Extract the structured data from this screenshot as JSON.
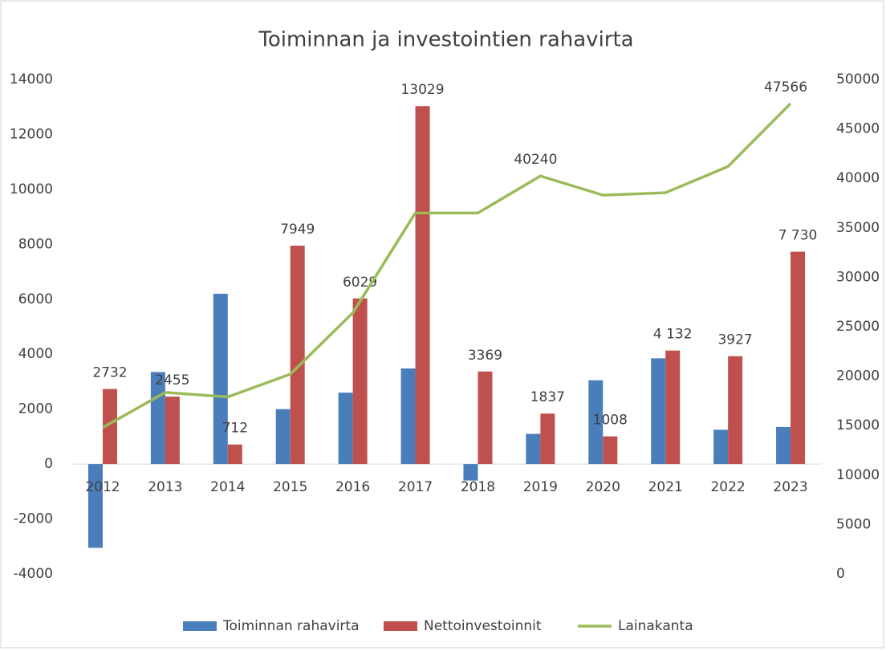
{
  "chart_data": {
    "type": "bar-line",
    "title": "Toiminnan ja investointien rahavirta",
    "categories": [
      "2012",
      "2013",
      "2014",
      "2015",
      "2016",
      "2017",
      "2018",
      "2019",
      "2020",
      "2021",
      "2022",
      "2023"
    ],
    "series": [
      {
        "name": "Toiminnan rahavirta",
        "type": "bar",
        "color": "#4a7ebb",
        "axis": "y",
        "values": [
          -3050,
          3350,
          6200,
          2000,
          2600,
          3480,
          -600,
          1100,
          3050,
          3850,
          1250,
          1350
        ]
      },
      {
        "name": "Nettoinvestoinnit",
        "type": "bar",
        "color": "#c0504d",
        "axis": "y",
        "values": [
          2732,
          2455,
          712,
          7949,
          6029,
          13029,
          3369,
          1837,
          1008,
          4132,
          3927,
          7730
        ],
        "value_labels": [
          "2732",
          "2455",
          "712",
          "7949",
          "6029",
          "13029",
          "3369",
          "1837",
          "1008",
          "4 132",
          "3927",
          "7 730"
        ]
      },
      {
        "name": "Lainakanta",
        "type": "line",
        "color": "#9bbb59",
        "axis": "y2",
        "values": [
          14800,
          18350,
          17900,
          20200,
          26400,
          36500,
          36500,
          40240,
          38300,
          38550,
          41200,
          47566
        ],
        "value_labels": [
          null,
          null,
          null,
          null,
          null,
          null,
          null,
          "40240",
          null,
          null,
          null,
          "47566"
        ]
      }
    ],
    "ylim": [
      -4000,
      14000
    ],
    "yticks": [
      -4000,
      -2000,
      0,
      2000,
      4000,
      6000,
      8000,
      10000,
      12000,
      14000
    ],
    "y2lim": [
      0,
      50000
    ],
    "y2ticks": [
      0,
      5000,
      10000,
      15000,
      20000,
      25000,
      30000,
      35000,
      40000,
      45000,
      50000
    ],
    "grid": false,
    "legend": "bottom"
  }
}
